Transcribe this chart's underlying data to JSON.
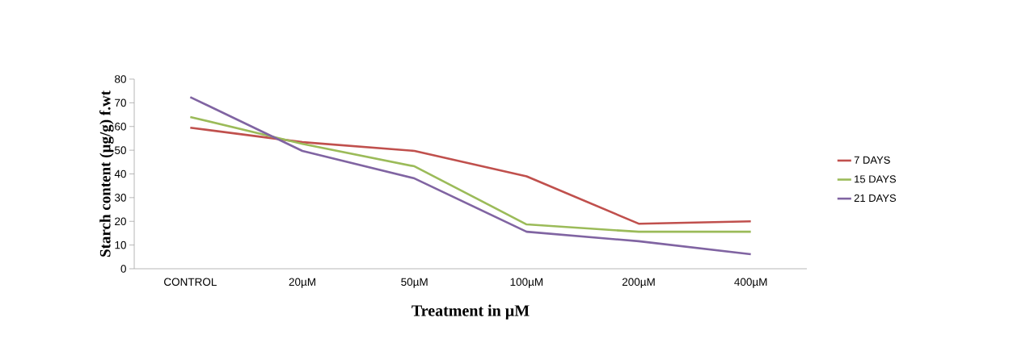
{
  "chart_data": {
    "type": "line",
    "xlabel": "Treatment in µM",
    "ylabel": "Starch content (µg/g) f.wt",
    "categories": [
      "CONTROL",
      "20µM",
      "50µM",
      "100µM",
      "200µM",
      "400µM"
    ],
    "series": [
      {
        "name": "7 DAYS",
        "color": "#c0504d",
        "values": [
          59.5,
          53.4,
          49.7,
          39,
          19,
          20
        ]
      },
      {
        "name": "15 DAYS",
        "color": "#9bbb59",
        "values": [
          64,
          52.7,
          43.2,
          18.7,
          15.6,
          15.6
        ]
      },
      {
        "name": "21 DAYS",
        "color": "#8064a2",
        "values": [
          72.4,
          49.7,
          38.1,
          15.6,
          11.6,
          6.1
        ]
      }
    ],
    "ylim": [
      0,
      80
    ],
    "yticks": [
      0,
      10,
      20,
      30,
      40,
      50,
      60,
      70,
      80
    ],
    "legend": "right",
    "line_style": "solid"
  }
}
